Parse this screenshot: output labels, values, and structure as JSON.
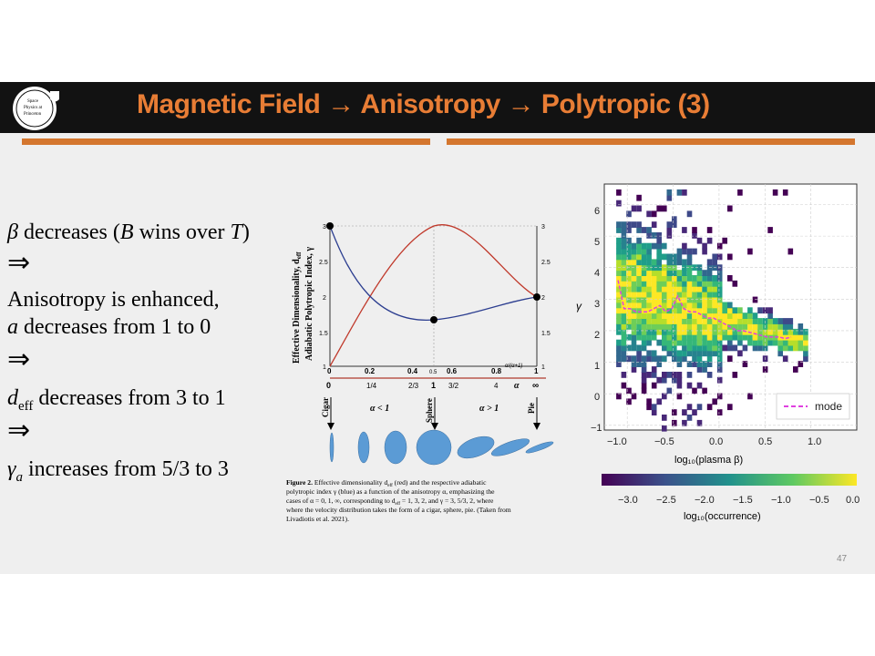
{
  "header": {
    "title": "Magnetic Field → Anisotropy → Polytropic  (3)",
    "logo_text": [
      "Space",
      "Physics at",
      "Princeton"
    ]
  },
  "left_text": {
    "line1": "β decreases (B wins over T)",
    "arrow": "⇒",
    "line2": "Anisotropy is enhanced,",
    "line3": "a decreases from 1 to 0",
    "line4": "d",
    "line4_sub": "eff",
    "line4_rest": " decreases from 3 to 1",
    "line5": "γ",
    "line5_sub": "a",
    "line5_rest": " increases from 5/3 to 3"
  },
  "figure2": {
    "ylabel1": "Effective Dimensionality, d",
    "ylabel1_sub": "eff",
    "ylabel2": "Adiabatic Polytropic Index, γ",
    "left_ticks": [
      "1",
      "1.5",
      "2",
      "2.5",
      "3"
    ],
    "right_ticks": [
      "1",
      "1.5",
      "2",
      "2.5",
      "3"
    ],
    "top_ticks": [
      "0",
      "0.2",
      "0.4",
      "0.5",
      "0.6",
      "0.8",
      "1"
    ],
    "top_axis_label": "α/(α+1)",
    "bottom_ticks": [
      "0",
      "1/4",
      "2/3",
      "1",
      "3/2",
      "4",
      "∞"
    ],
    "bottom_axis_label": "α",
    "shapes": [
      "Cigar",
      "Sphere",
      "Pie"
    ],
    "regions": [
      "α < 1",
      "α > 1"
    ],
    "caption_bold": "Figure 2.",
    "caption_lines": [
      "Effective dimensionality d",
      "polytropic index γ (blue) as a function of the anisotropy α, emphasizing the",
      "cases of α = 0, 1, ∞, corresponding to d",
      "where the velocity distribution takes the form of a cigar, sphere, pie. (Taken from",
      "Livadiotis et al. 2021)."
    ],
    "caption_line1_rest": " (red) and the respective adiabatic",
    "caption_line3_rest": " = 1, 3, 2, and γ = 3, 5/3, 2, where",
    "caption_sub": "eff"
  },
  "heatmap": {
    "ylabel": "γ",
    "xlabel": "log₁₀(plasma β)",
    "yticks": [
      "−1",
      "0",
      "1",
      "2",
      "3",
      "4",
      "5",
      "6"
    ],
    "xticks": [
      "−1.0",
      "−0.5",
      "0.0",
      "0.5",
      "1.0"
    ],
    "legend": "mode",
    "colorbar_ticks": [
      "−3.0",
      "−2.5",
      "−2.0",
      "−1.5",
      "−1.0",
      "−0.5",
      "0.0"
    ],
    "colorbar_label": "log₁₀(occurrence)",
    "colors": {
      "low": "#440154",
      "mid": "#21918c",
      "high": "#fde725",
      "mode": "#e040e0"
    }
  },
  "page_number": "47"
}
